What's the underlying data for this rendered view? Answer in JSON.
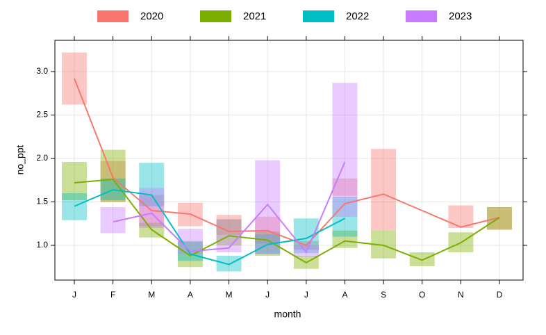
{
  "chart_data": {
    "type": "line-range",
    "x_label": "month",
    "y_label": "no_ppt",
    "categories": [
      "J",
      "F",
      "M",
      "A",
      "M",
      "J",
      "J",
      "A",
      "S",
      "O",
      "N",
      "D"
    ],
    "ylim": [
      0.6,
      3.36
    ],
    "yticks": [
      {
        "value": 1,
        "label": "1.0"
      },
      1.5,
      {
        "value": 2,
        "label": "2.0"
      },
      2.5,
      {
        "value": 3,
        "label": "3.0"
      }
    ],
    "grid": true,
    "legend": "top",
    "series": [
      {
        "name": "2020",
        "color": "#F8766D",
        "values": [
          2.92,
          1.78,
          1.4,
          1.36,
          1.16,
          1.17,
          1.0,
          1.48,
          1.59,
          1.4,
          1.21,
          1.32
        ],
        "low": [
          2.62,
          1.5,
          1.22,
          1.22,
          1.12,
          1.02,
          0.95,
          1.57,
          1.17,
          null,
          1.2,
          1.18
        ],
        "high": [
          3.22,
          1.97,
          1.58,
          1.49,
          1.35,
          1.33,
          1.05,
          1.77,
          2.11,
          null,
          1.46,
          1.44
        ]
      },
      {
        "name": "2021",
        "color": "#7CAE00",
        "values": [
          1.72,
          1.76,
          1.18,
          0.88,
          1.11,
          1.06,
          0.8,
          1.05,
          1.0,
          0.83,
          1.03,
          1.32
        ],
        "low": [
          1.52,
          1.5,
          1.09,
          0.75,
          1.0,
          0.88,
          0.73,
          0.97,
          0.85,
          0.76,
          0.92,
          1.18
        ],
        "high": [
          1.96,
          2.1,
          1.26,
          1.04,
          1.3,
          1.16,
          0.88,
          1.17,
          1.17,
          0.92,
          1.15,
          1.44
        ]
      },
      {
        "name": "2022",
        "color": "#00BFC4",
        "values": [
          1.45,
          1.64,
          1.58,
          0.9,
          0.78,
          1.01,
          1.08,
          1.31,
          null,
          null,
          null,
          null
        ],
        "low": [
          1.29,
          1.52,
          1.45,
          0.82,
          0.7,
          0.9,
          0.91,
          1.1,
          null,
          null,
          null,
          null
        ],
        "high": [
          1.6,
          1.77,
          1.95,
          1.05,
          0.88,
          1.13,
          1.31,
          1.56,
          null,
          null,
          null,
          null
        ]
      },
      {
        "name": "2023",
        "color": "#C77CFF",
        "values": [
          null,
          1.27,
          1.37,
          0.93,
          0.97,
          1.47,
          0.92,
          1.96,
          null,
          null,
          null,
          null
        ],
        "low": [
          null,
          1.14,
          1.2,
          0.9,
          0.92,
          0.9,
          0.87,
          1.33,
          null,
          null,
          null,
          null
        ],
        "high": [
          null,
          1.44,
          1.66,
          1.19,
          1.3,
          1.98,
          1.0,
          2.87,
          null,
          null,
          null,
          null
        ]
      }
    ]
  }
}
